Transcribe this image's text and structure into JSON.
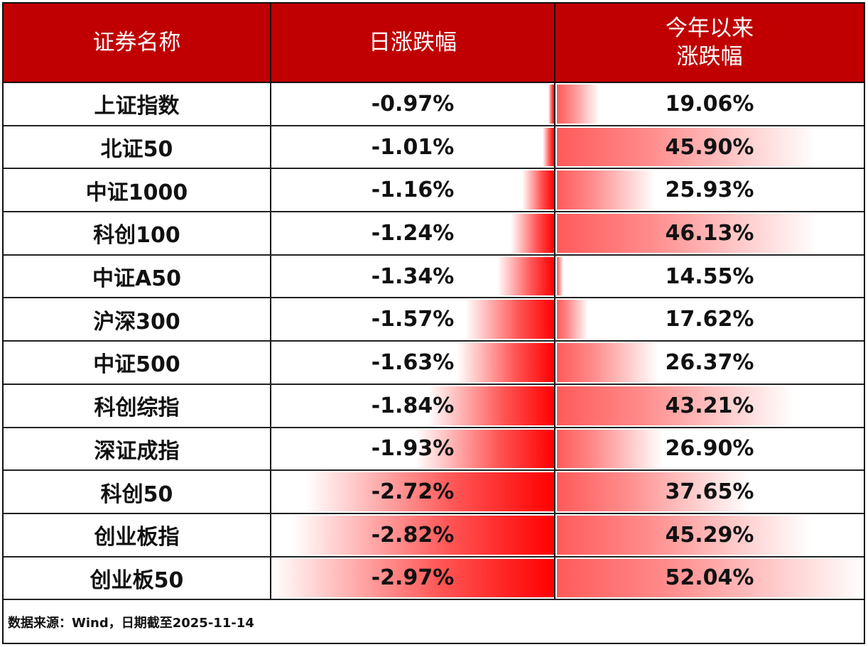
{
  "header": {
    "col_name": "证券名称",
    "col_daily": "日涨跌幅",
    "col_ytd_line1": "今年以来",
    "col_ytd_line2": "涨跌幅"
  },
  "colors": {
    "header_bg": "#c00000",
    "negative_bar": "#ff0000",
    "positive_bar": "#ff5a5a"
  },
  "rows": [
    {
      "name": "上证指数",
      "daily": "-0.97%",
      "ytd": "19.06%"
    },
    {
      "name": "北证50",
      "daily": "-1.01%",
      "ytd": "45.90%"
    },
    {
      "name": "中证1000",
      "daily": "-1.16%",
      "ytd": "25.93%"
    },
    {
      "name": "科创100",
      "daily": "-1.24%",
      "ytd": "46.13%"
    },
    {
      "name": "中证A50",
      "daily": "-1.34%",
      "ytd": "14.55%"
    },
    {
      "name": "沪深300",
      "daily": "-1.57%",
      "ytd": "17.62%"
    },
    {
      "name": "中证500",
      "daily": "-1.63%",
      "ytd": "26.37%"
    },
    {
      "name": "科创综指",
      "daily": "-1.84%",
      "ytd": "43.21%"
    },
    {
      "name": "深证成指",
      "daily": "-1.93%",
      "ytd": "26.90%"
    },
    {
      "name": "科创50",
      "daily": "-2.72%",
      "ytd": "37.65%"
    },
    {
      "name": "创业板指",
      "daily": "-2.82%",
      "ytd": "45.29%"
    },
    {
      "name": "创业板50",
      "daily": "-2.97%",
      "ytd": "52.04%"
    }
  ],
  "footer": {
    "source": "数据来源：Wind，日期截至2025-11-14"
  },
  "chart_data": {
    "type": "table",
    "title": "",
    "columns": [
      "证券名称",
      "日涨跌幅",
      "今年以来涨跌幅"
    ],
    "categories": [
      "上证指数",
      "北证50",
      "中证1000",
      "科创100",
      "中证A50",
      "沪深300",
      "中证500",
      "科创综指",
      "深证成指",
      "科创50",
      "创业板指",
      "创业板50"
    ],
    "series": [
      {
        "name": "日涨跌幅",
        "values": [
          -0.97,
          -1.01,
          -1.16,
          -1.24,
          -1.34,
          -1.57,
          -1.63,
          -1.84,
          -1.93,
          -2.72,
          -2.82,
          -2.97
        ]
      },
      {
        "name": "今年以来涨跌幅",
        "values": [
          19.06,
          45.9,
          25.93,
          46.13,
          14.55,
          17.62,
          26.37,
          43.21,
          26.9,
          37.65,
          45.29,
          52.04
        ]
      }
    ],
    "unit": "%",
    "note": "数据来源：Wind，日期截至2025-11-14"
  }
}
